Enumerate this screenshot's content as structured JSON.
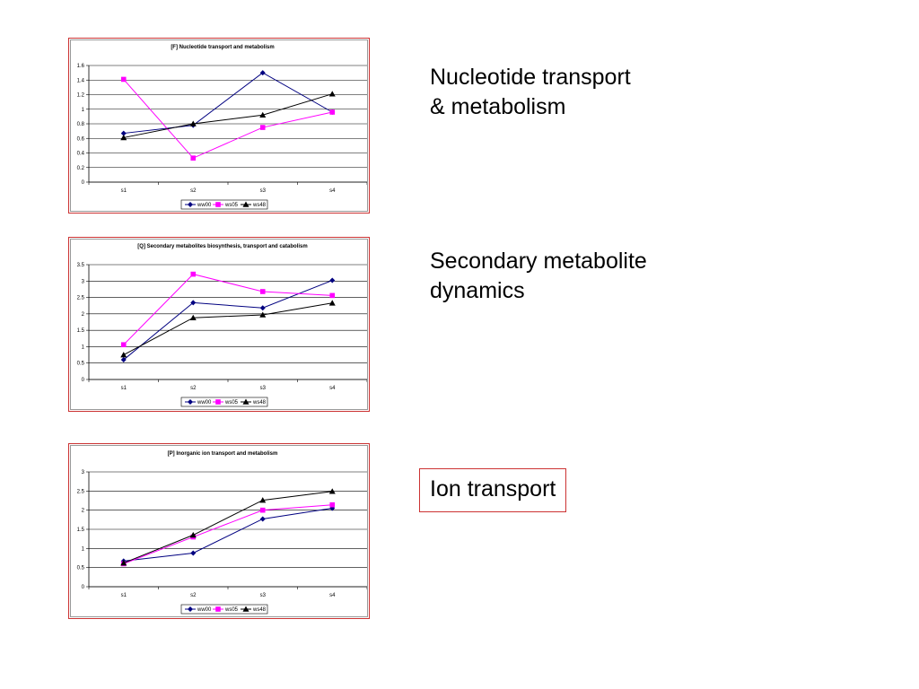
{
  "captions": [
    {
      "lines": [
        "Nucleotide transport",
        "& metabolism"
      ],
      "boxed": false
    },
    {
      "lines": [
        "Secondary metabolite",
        "dynamics"
      ],
      "boxed": false
    },
    {
      "lines": [
        "Ion transport"
      ],
      "boxed": true
    }
  ],
  "colors": {
    "ww00": "#000080",
    "ws05": "#ff00ff",
    "ws48": "#000000",
    "frame_border": "#cc3333",
    "gridline": "#000000"
  },
  "chart_data": [
    {
      "type": "line",
      "title": "[F] Nucleotide transport and metabolism",
      "categories": [
        "s1",
        "s2",
        "s3",
        "s4"
      ],
      "ylim": [
        0,
        1.6
      ],
      "yticks": [
        "0",
        "0.2",
        "0.4",
        "0.6",
        "0.8",
        "1",
        "1.2",
        "1.4",
        "1.6"
      ],
      "grid": true,
      "legend_position": "bottom",
      "series": [
        {
          "name": "ww00",
          "marker": "diamond",
          "values": [
            0.67,
            0.78,
            1.5,
            0.96
          ]
        },
        {
          "name": "ws05",
          "marker": "square",
          "values": [
            1.41,
            0.33,
            0.75,
            0.96
          ]
        },
        {
          "name": "ws48",
          "marker": "triangle",
          "values": [
            0.61,
            0.8,
            0.92,
            1.21
          ]
        }
      ]
    },
    {
      "type": "line",
      "title": "[Q] Secondary metabolites biosynthesis, transport and catabolism",
      "categories": [
        "s1",
        "s2",
        "s3",
        "s4"
      ],
      "ylim": [
        0,
        3.5
      ],
      "yticks": [
        "0",
        "0.5",
        "1",
        "1.5",
        "2",
        "2.5",
        "3",
        "3.5"
      ],
      "grid": true,
      "legend_position": "bottom",
      "series": [
        {
          "name": "ww00",
          "marker": "diamond",
          "values": [
            0.6,
            2.34,
            2.18,
            3.02
          ]
        },
        {
          "name": "ws05",
          "marker": "square",
          "values": [
            1.06,
            3.21,
            2.68,
            2.56
          ]
        },
        {
          "name": "ws48",
          "marker": "triangle",
          "values": [
            0.75,
            1.88,
            1.97,
            2.33
          ]
        }
      ]
    },
    {
      "type": "line",
      "title": "[P] Inorganic ion transport and metabolism",
      "categories": [
        "s1",
        "s2",
        "s3",
        "s4"
      ],
      "ylim": [
        0,
        3
      ],
      "yticks": [
        "0",
        "0.5",
        "1",
        "1.5",
        "2",
        "2.5",
        "3"
      ],
      "grid": true,
      "legend_position": "bottom",
      "series": [
        {
          "name": "ww00",
          "marker": "diamond",
          "values": [
            0.67,
            0.88,
            1.77,
            2.05
          ]
        },
        {
          "name": "ws05",
          "marker": "square",
          "values": [
            0.6,
            1.3,
            2.0,
            2.14
          ]
        },
        {
          "name": "ws48",
          "marker": "triangle",
          "values": [
            0.62,
            1.35,
            2.26,
            2.49
          ]
        }
      ]
    }
  ]
}
